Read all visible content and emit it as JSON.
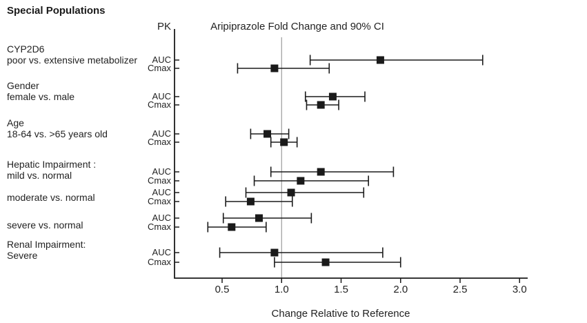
{
  "figure": {
    "title": "Special Populations"
  },
  "chart_data": {
    "type": "forest",
    "title": "Aripiprazole Fold Change and 90% CI",
    "column_header": "PK",
    "xlabel": "Change Relative to Reference",
    "x_ticks": [
      "0.5",
      "1.0",
      "1.5",
      "2.0",
      "2.5",
      "3.0"
    ],
    "xlim": [
      0.1,
      3.07
    ],
    "reference_line": 1.0,
    "legend": "none",
    "grid": "off",
    "groups": [
      {
        "label_lines": [
          "CYP2D6",
          "poor vs. extensive metabolizer"
        ],
        "rows": [
          {
            "pk": "AUC",
            "lo": 1.24,
            "mid": 1.83,
            "hi": 2.69
          },
          {
            "pk": "Cmax",
            "lo": 0.63,
            "mid": 0.94,
            "hi": 1.4
          }
        ]
      },
      {
        "label_lines": [
          "Gender",
          "female vs. male"
        ],
        "rows": [
          {
            "pk": "AUC",
            "lo": 1.2,
            "mid": 1.43,
            "hi": 1.7
          },
          {
            "pk": "Cmax",
            "lo": 1.21,
            "mid": 1.33,
            "hi": 1.48
          }
        ]
      },
      {
        "label_lines": [
          "Age",
          "18-64 vs. >65 years old"
        ],
        "rows": [
          {
            "pk": "AUC",
            "lo": 0.74,
            "mid": 0.88,
            "hi": 1.06
          },
          {
            "pk": "Cmax",
            "lo": 0.91,
            "mid": 1.02,
            "hi": 1.13
          }
        ]
      },
      {
        "label_lines": [
          "Hepatic Impairment :",
          "mild vs. normal"
        ],
        "rows": [
          {
            "pk": "AUC",
            "lo": 0.91,
            "mid": 1.33,
            "hi": 1.94
          },
          {
            "pk": "Cmax",
            "lo": 0.77,
            "mid": 1.16,
            "hi": 1.73
          }
        ]
      },
      {
        "label_lines": [
          "moderate vs. normal"
        ],
        "rows": [
          {
            "pk": "AUC",
            "lo": 0.7,
            "mid": 1.08,
            "hi": 1.69
          },
          {
            "pk": "Cmax",
            "lo": 0.53,
            "mid": 0.74,
            "hi": 1.09
          }
        ]
      },
      {
        "label_lines": [
          "severe vs. normal"
        ],
        "rows": [
          {
            "pk": "AUC",
            "lo": 0.51,
            "mid": 0.81,
            "hi": 1.25
          },
          {
            "pk": "Cmax",
            "lo": 0.38,
            "mid": 0.58,
            "hi": 0.87
          }
        ]
      },
      {
        "label_lines": [
          "Renal Impairment:",
          "Severe"
        ],
        "rows": [
          {
            "pk": "AUC",
            "lo": 0.48,
            "mid": 0.94,
            "hi": 1.85
          },
          {
            "pk": "Cmax",
            "lo": 0.94,
            "mid": 1.37,
            "hi": 2.0
          }
        ]
      }
    ],
    "colors": {
      "marker": "#1a1a1a",
      "line": "#1a1a1a",
      "axis": "#1a1a1a",
      "reference_line": "#9a9a9a",
      "text": "#222222"
    }
  }
}
